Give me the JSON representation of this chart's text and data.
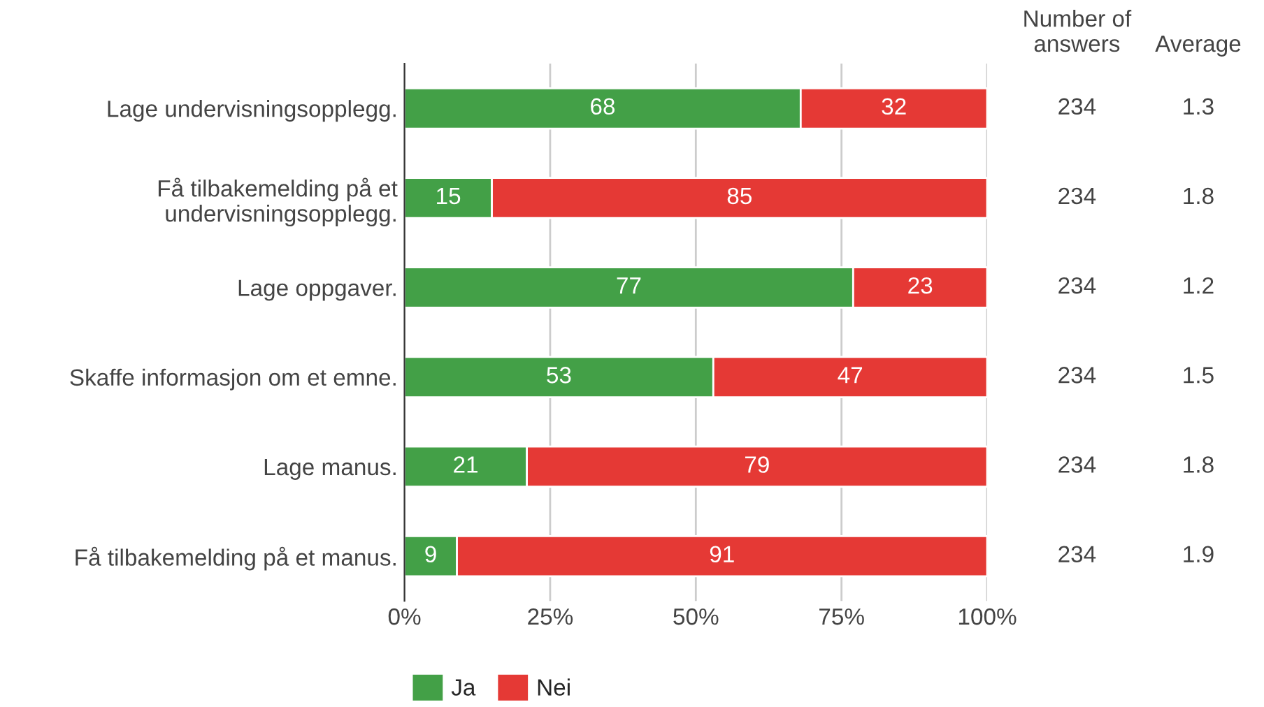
{
  "chart_data": {
    "type": "bar",
    "orientation": "horizontal",
    "stacked": true,
    "categories": [
      "Lage undervisningsopplegg.",
      "Få tilbakemelding på et\nundervisningsopplegg.",
      "Lage oppgaver.",
      "Skaffe informasjon om et emne.",
      "Lage manus.",
      "Få tilbakemelding på et manus."
    ],
    "series": [
      {
        "name": "Ja",
        "color": "#43a047",
        "values": [
          68,
          15,
          77,
          53,
          21,
          9
        ]
      },
      {
        "name": "Nei",
        "color": "#e53935",
        "values": [
          32,
          85,
          23,
          47,
          79,
          91
        ]
      }
    ],
    "xlim": [
      0,
      100
    ],
    "xticks": [
      {
        "value": 0,
        "label": "0%"
      },
      {
        "value": 25,
        "label": "25%"
      },
      {
        "value": 50,
        "label": "50%"
      },
      {
        "value": 75,
        "label": "75%"
      },
      {
        "value": 100,
        "label": "100%"
      }
    ],
    "grid": "x",
    "legend": "bottom",
    "data_labels": true,
    "annotations": [
      "Number of\nanswers",
      "Average",
      "234",
      "1.3",
      "234",
      "1.8",
      "234",
      "1.2",
      "234",
      "1.5",
      "234",
      "1.8",
      "234",
      "1.9"
    ]
  }
}
